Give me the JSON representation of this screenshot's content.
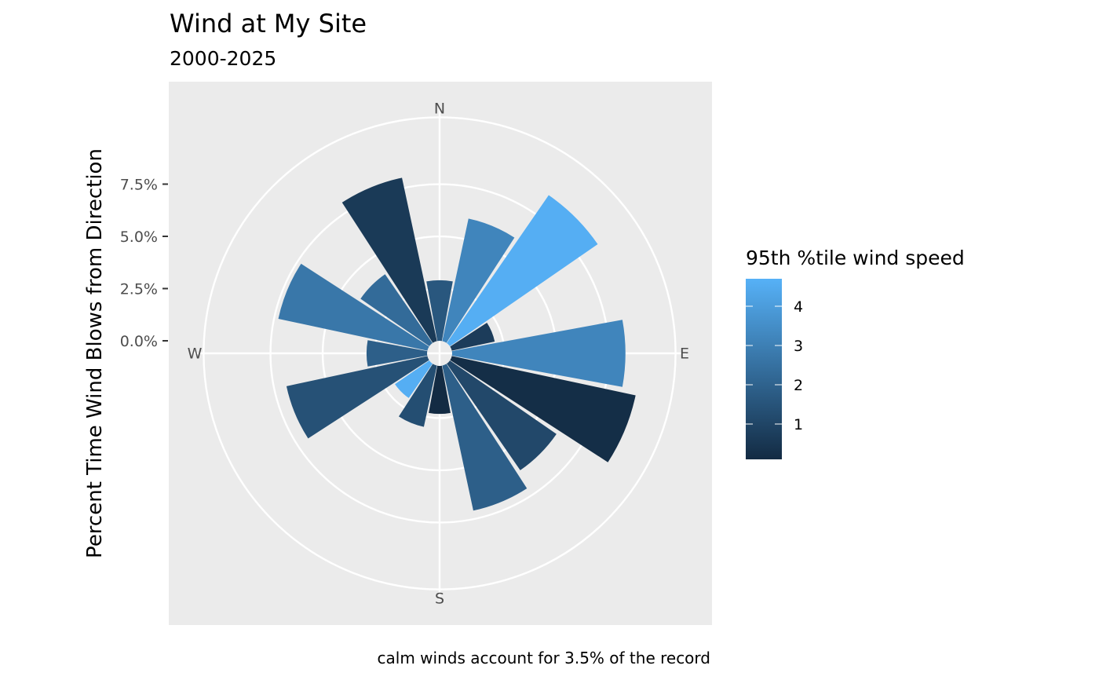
{
  "chart_data": {
    "type": "bar",
    "coord": "polar",
    "title": "Wind at My Site",
    "subtitle": "2000-2025",
    "ylabel": "Percent Time Wind Blows from Direction",
    "caption": "calm winds account for 3.5% of the record",
    "y_ticks": [
      "0.0%",
      "2.5%",
      "5.0%",
      "7.5%"
    ],
    "y_tick_values": [
      0,
      2.5,
      5,
      7.5
    ],
    "ylim": [
      -0.6,
      11.2
    ],
    "grid": true,
    "compass_labels": [
      "N",
      "E",
      "S",
      "W"
    ],
    "directions_deg": [
      0,
      22.5,
      45,
      67.5,
      90,
      112.5,
      135,
      157.5,
      180,
      202.5,
      225,
      247.5,
      270,
      292.5,
      315,
      337.5
    ],
    "percent": [
      2.9,
      6.0,
      8.6,
      2.1,
      8.3,
      9.0,
      6.2,
      7.1,
      2.3,
      3.0,
      2.0,
      6.9,
      2.9,
      7.3,
      4.0,
      8.0
    ],
    "p95_speed": [
      1.6,
      3.2,
      4.6,
      0.7,
      3.2,
      0.2,
      1.1,
      1.9,
      0.1,
      1.3,
      4.6,
      1.4,
      1.9,
      2.7,
      2.3,
      0.6
    ],
    "legend": {
      "title": "95th %tile wind speed",
      "ticks": [
        "1",
        "2",
        "3",
        "4"
      ],
      "tick_values": [
        1,
        2,
        3,
        4
      ],
      "range": [
        0.1,
        4.7
      ],
      "color_low": "#132B43",
      "color_high": "#56B1F7",
      "position": "right"
    },
    "panel_background": "#EBEBEB",
    "grid_color": "#FFFFFF"
  }
}
